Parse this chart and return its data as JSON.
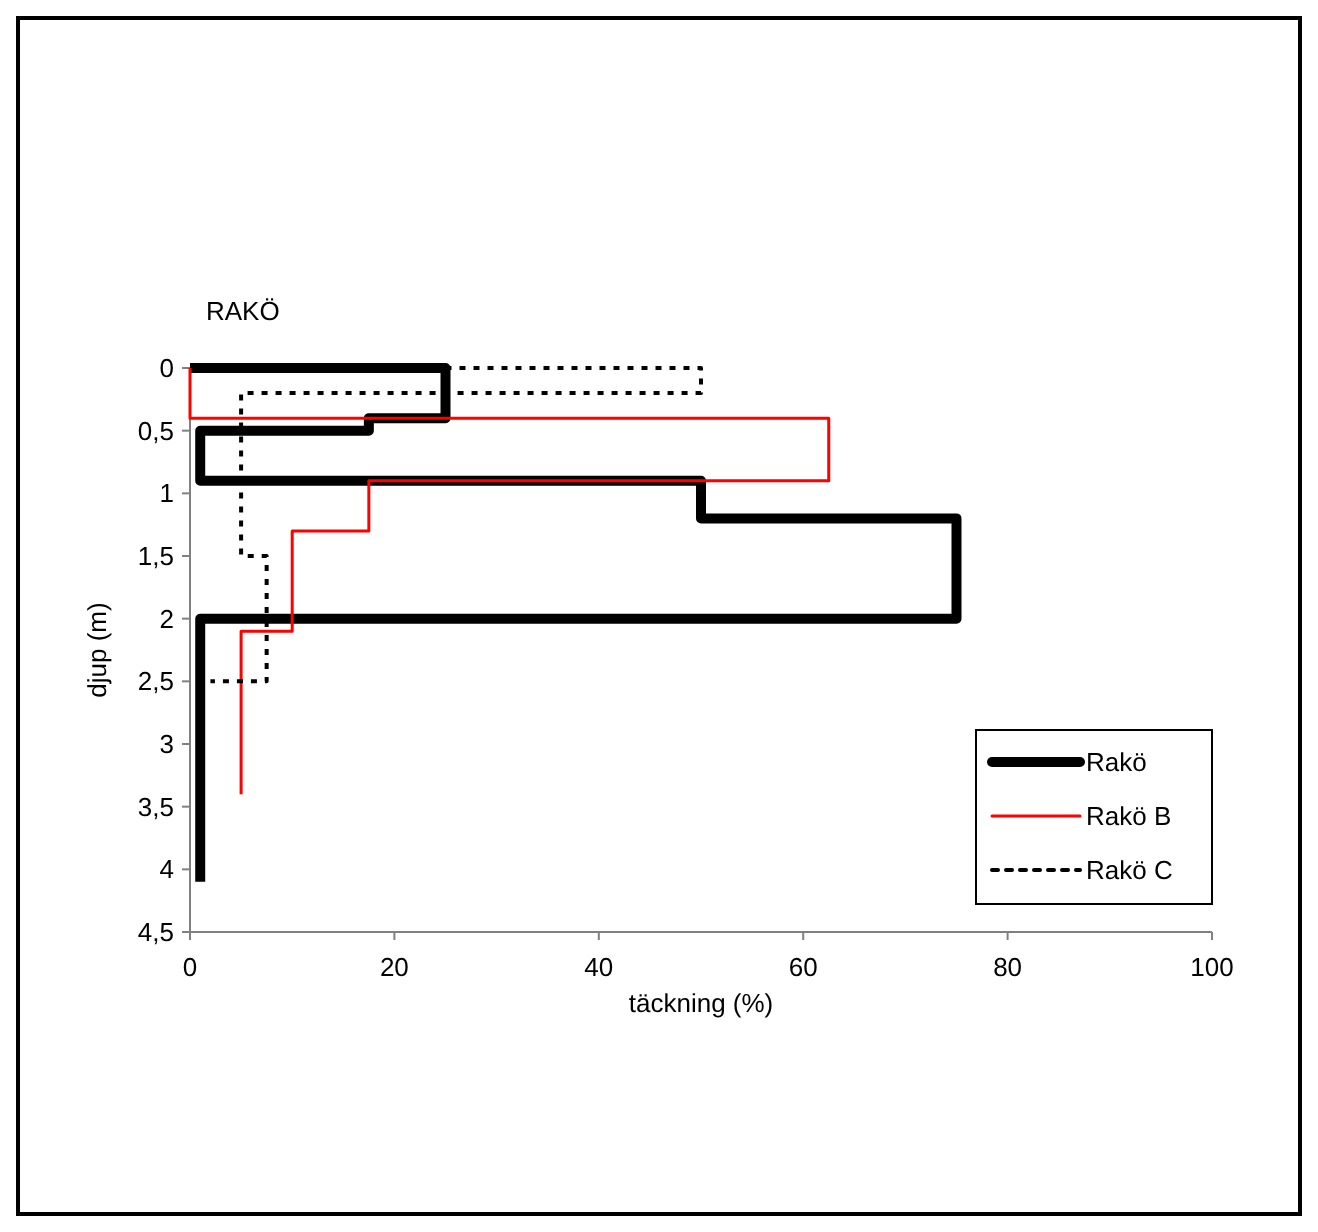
{
  "chart_data": {
    "type": "line",
    "title": "RAKÖ",
    "xlabel": "täckning (%)",
    "ylabel": "djup (m)",
    "xlim": [
      0,
      100
    ],
    "xticks": [
      0,
      20,
      40,
      60,
      80,
      100
    ],
    "ylim": [
      4.5,
      0
    ],
    "yticks": [
      0,
      {
        "value": 0.5,
        "label": "0,5"
      },
      1,
      {
        "value": 1.5,
        "label": "1,5"
      },
      2,
      {
        "value": 2.5,
        "label": "2,5"
      },
      3,
      {
        "value": 3.5,
        "label": "3,5"
      },
      4,
      {
        "value": 4.5,
        "label": "4,5"
      }
    ],
    "grid": false,
    "legend": "right",
    "marker": "none",
    "series": [
      {
        "name": "Rakö",
        "color": "#000000",
        "line_style": "solid",
        "x": [
          0,
          25,
          25,
          17.5,
          17.5,
          1,
          1,
          50,
          50,
          75,
          75,
          1,
          1
        ],
        "values": [
          0,
          0,
          0.4,
          0.4,
          0.5,
          0.5,
          0.9,
          0.9,
          1.2,
          1.2,
          2,
          2,
          4.1
        ]
      },
      {
        "name": "Rakö B",
        "color": "#ff0000",
        "line_style": "solid",
        "x": [
          0,
          0,
          62.5,
          62.5,
          17.5,
          17.5,
          10,
          10,
          5,
          5
        ],
        "values": [
          0,
          0.4,
          0.4,
          0.9,
          0.9,
          1.3,
          1.3,
          2.1,
          2.1,
          3.4
        ]
      },
      {
        "name": "Rakö C",
        "color": "#000000",
        "line_style": "dotted",
        "x": [
          25,
          50,
          50,
          5,
          5,
          7.5,
          7.5,
          2
        ],
        "values": [
          0,
          0,
          0.2,
          0.2,
          1.5,
          1.5,
          2.5,
          2.5
        ]
      }
    ]
  }
}
